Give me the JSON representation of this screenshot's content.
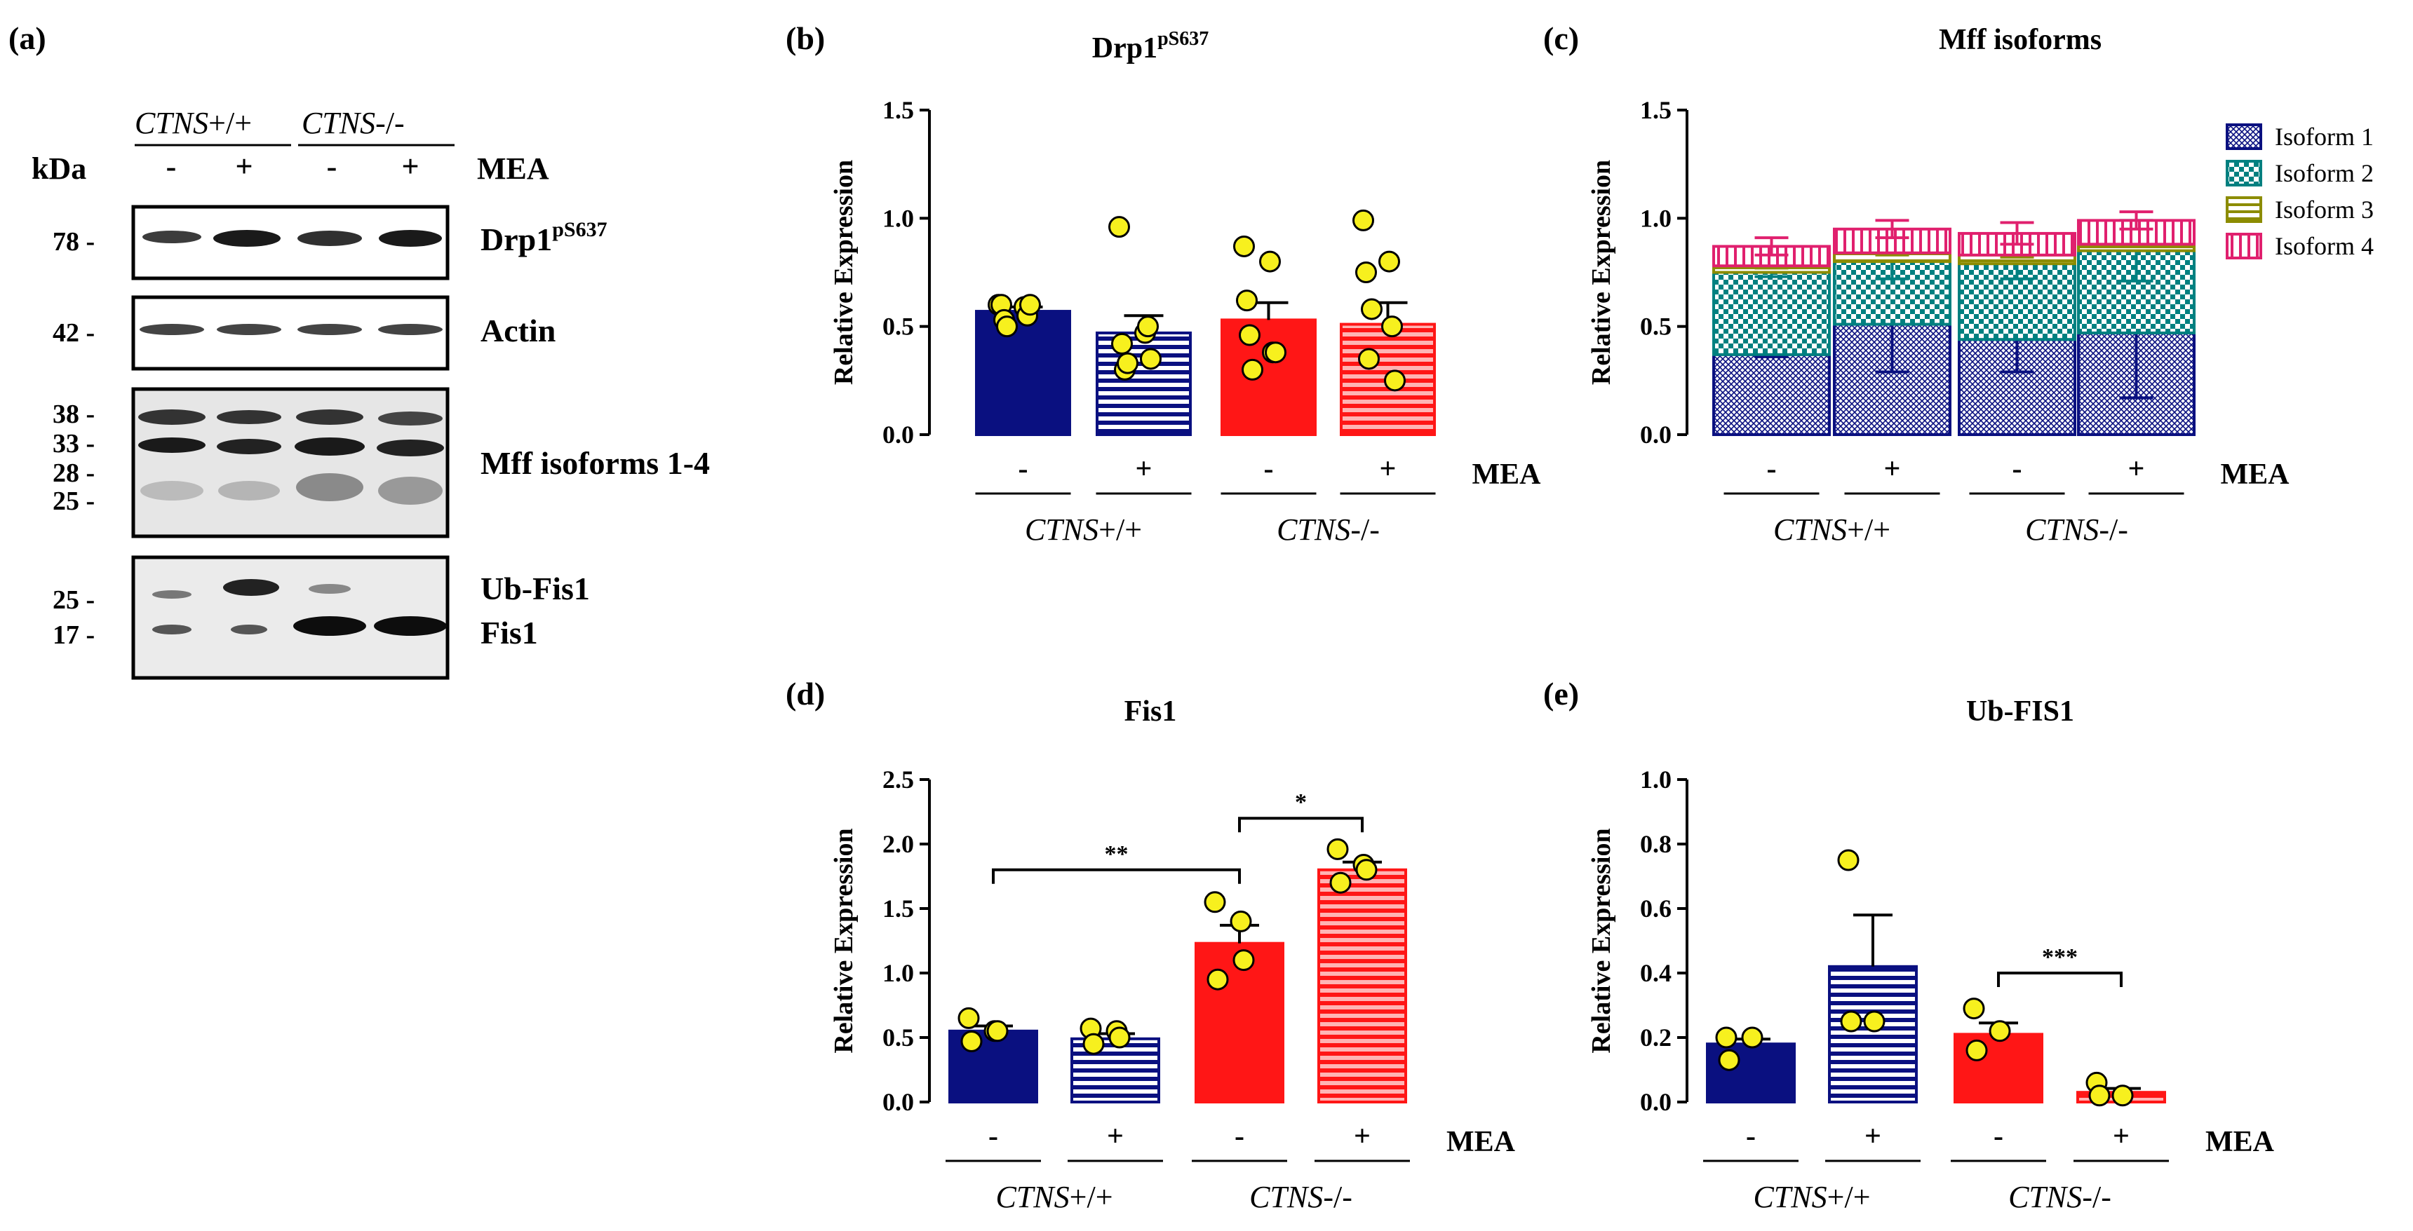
{
  "figure": {
    "panel_labels": [
      "(a)",
      "(b)",
      "(c)",
      "(d)",
      "(e)"
    ],
    "condition_label": "MEA",
    "treatment_signs": [
      "-",
      "+",
      "-",
      "+"
    ],
    "genotypes": [
      {
        "italic": "CTNS",
        "suffix": "+/+"
      },
      {
        "italic": "CTNS",
        "suffix": "-/-"
      }
    ],
    "colors": {
      "wt": "#0a1080",
      "ko": "#ff1616",
      "dot": "#f7f01e",
      "iso3": "#8c8c00",
      "iso4": "#e0206e",
      "iso2": "#008080"
    }
  },
  "blot": {
    "kda_label": "kDa",
    "rows": [
      {
        "name": "Drp1",
        "sup": "pS637",
        "markers": [
          "78 -"
        ]
      },
      {
        "name": "Actin",
        "sup": "",
        "markers": [
          "42 -"
        ]
      },
      {
        "name": "Mff isoforms 1-4",
        "sup": "",
        "markers": [
          "38 -",
          "33 -",
          "28 -",
          "25 -"
        ]
      },
      {
        "name": "Ub-Fis1",
        "sup": "",
        "name2": "Fis1",
        "markers": [
          "25 -",
          "17 -"
        ]
      }
    ]
  },
  "chart_data": [
    {
      "panel": "(b)",
      "type": "bar",
      "title": "Drp1",
      "title_sup": "pS637",
      "ylabel": "Relative Expression",
      "ylim": [
        0,
        1.5
      ],
      "yticks": [
        "0.0",
        "0.5",
        "1.0",
        "1.5"
      ],
      "categories": [
        "CTNS+/+ -",
        "CTNS+/+ +",
        "CTNS-/- -",
        "CTNS-/- +"
      ],
      "values": [
        0.57,
        0.47,
        0.53,
        0.51
      ],
      "sem": [
        0.02,
        0.08,
        0.08,
        0.1
      ],
      "points": [
        [
          0.6,
          0.59,
          0.6,
          0.55,
          0.53,
          0.6,
          0.5
        ],
        [
          0.96,
          0.47,
          0.42,
          0.5,
          0.3,
          0.35,
          0.33
        ],
        [
          0.87,
          0.8,
          0.62,
          0.38,
          0.46,
          0.38,
          0.3
        ],
        [
          0.99,
          0.8,
          0.75,
          0.5,
          0.35,
          0.25,
          0.58
        ]
      ]
    },
    {
      "panel": "(c)",
      "type": "bar",
      "stacked": true,
      "title": "Mff isoforms",
      "ylabel": "Relative Expression",
      "ylim": [
        0,
        1.5
      ],
      "yticks": [
        "0.0",
        "0.5",
        "1.0",
        "1.5"
      ],
      "categories": [
        "CTNS+/+ -",
        "CTNS+/+ +",
        "CTNS-/- -",
        "CTNS-/- +"
      ],
      "legend": [
        "Isoform 1",
        "Isoform 2",
        "Isoform 3",
        "Isoform 4"
      ],
      "series": [
        {
          "name": "Isoform 1",
          "values": [
            0.37,
            0.51,
            0.44,
            0.47
          ],
          "sem": [
            0.01,
            0.22,
            0.15,
            0.3
          ]
        },
        {
          "name": "Isoform 2",
          "values": [
            0.38,
            0.29,
            0.35,
            0.38
          ],
          "sem": [
            0.02,
            0.08,
            0.07,
            0.14
          ]
        },
        {
          "name": "Isoform 3",
          "values": [
            0.03,
            0.04,
            0.04,
            0.03
          ],
          "sem": [
            0.01,
            0.01,
            0.01,
            0.01
          ]
        },
        {
          "name": "Isoform 4",
          "values": [
            0.09,
            0.11,
            0.1,
            0.11
          ],
          "sem": [
            0.04,
            0.04,
            0.05,
            0.04
          ]
        }
      ]
    },
    {
      "panel": "(d)",
      "type": "bar",
      "title": "Fis1",
      "ylabel": "Relative Expression",
      "ylim": [
        0,
        2.5
      ],
      "yticks": [
        "0.0",
        "0.5",
        "1.0",
        "1.5",
        "2.0",
        "2.5"
      ],
      "categories": [
        "CTNS+/+ -",
        "CTNS+/+ +",
        "CTNS-/- -",
        "CTNS-/- +"
      ],
      "values": [
        0.55,
        0.49,
        1.23,
        1.8
      ],
      "sem": [
        0.04,
        0.04,
        0.14,
        0.06
      ],
      "points": [
        [
          0.65,
          0.55,
          0.47,
          0.55
        ],
        [
          0.57,
          0.55,
          0.45,
          0.5
        ],
        [
          1.55,
          1.4,
          0.95,
          1.1
        ],
        [
          1.96,
          1.84,
          1.7,
          1.8
        ]
      ],
      "significance": [
        {
          "from": 0,
          "to": 2,
          "label": "**",
          "y": 1.8
        },
        {
          "from": 2,
          "to": 3,
          "label": "*",
          "y": 2.2
        }
      ]
    },
    {
      "panel": "(e)",
      "type": "bar",
      "title": "Ub-FIS1",
      "ylabel": "Relative Expression",
      "ylim": [
        0,
        1.0
      ],
      "yticks": [
        "0.0",
        "0.2",
        "0.4",
        "0.6",
        "0.8",
        "1.0"
      ],
      "categories": [
        "CTNS+/+ -",
        "CTNS+/+ +",
        "CTNS-/- -",
        "CTNS-/- +"
      ],
      "values": [
        0.18,
        0.42,
        0.21,
        0.03
      ],
      "sem": [
        0.015,
        0.16,
        0.035,
        0.012
      ],
      "points": [
        [
          0.2,
          0.2,
          0.13
        ],
        [
          0.75,
          0.25,
          0.25
        ],
        [
          0.29,
          0.22,
          0.16
        ],
        [
          0.06,
          0.02,
          0.02
        ]
      ],
      "significance": [
        {
          "from": 2,
          "to": 3,
          "label": "***",
          "y": 0.4
        }
      ]
    }
  ]
}
